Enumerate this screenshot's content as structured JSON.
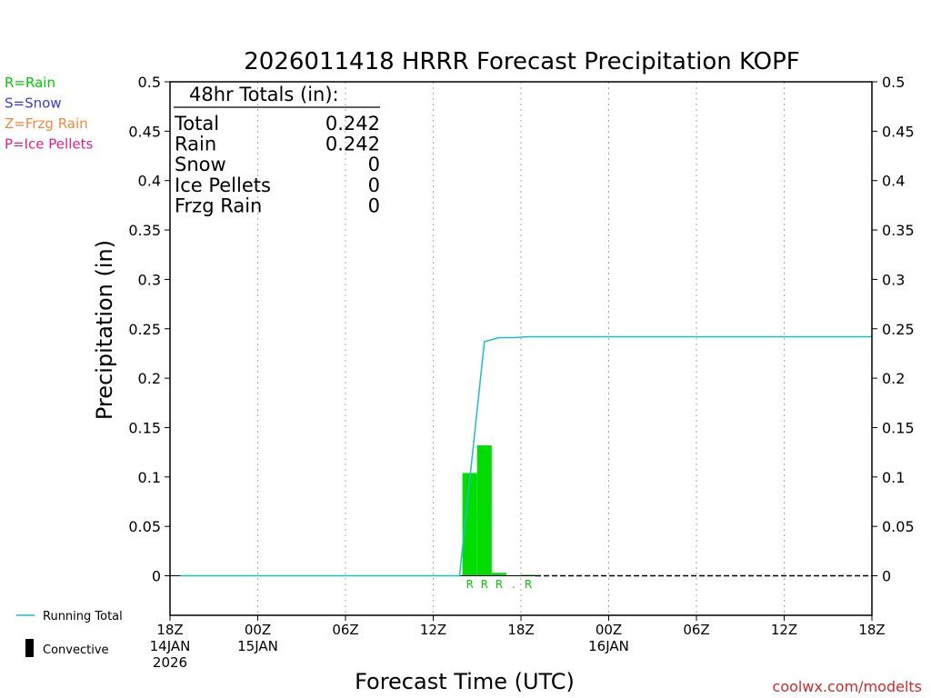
{
  "chart_data": {
    "type": "bar",
    "title": "2026011418 HRRR Forecast Precipitation KOPF",
    "xlabel": "Forecast Time (UTC)",
    "ylabel": "Precipitation (in)",
    "ylim": [
      -0.04,
      0.5
    ],
    "xlim": [
      0,
      48
    ],
    "y_ticks": [
      0,
      0.05,
      0.1,
      0.15,
      0.2,
      0.25,
      0.3,
      0.35,
      0.4,
      0.45,
      0.5
    ],
    "y_tick_labels": [
      "0",
      "0.05",
      "0.1",
      "0.15",
      "0.2",
      "0.25",
      "0.3",
      "0.35",
      "0.4",
      "0.45",
      "0.5"
    ],
    "x_ticks": [
      {
        "hour": 0,
        "lines": [
          "18Z",
          "14JAN",
          "2026"
        ]
      },
      {
        "hour": 6,
        "lines": [
          "00Z",
          "15JAN"
        ]
      },
      {
        "hour": 12,
        "lines": [
          "06Z"
        ]
      },
      {
        "hour": 18,
        "lines": [
          "12Z"
        ]
      },
      {
        "hour": 24,
        "lines": [
          "18Z"
        ]
      },
      {
        "hour": 30,
        "lines": [
          "00Z",
          "16JAN"
        ]
      },
      {
        "hour": 36,
        "lines": [
          "06Z"
        ]
      },
      {
        "hour": 42,
        "lines": [
          "12Z"
        ]
      },
      {
        "hour": 48,
        "lines": [
          "18Z"
        ]
      }
    ],
    "grid_vertical": true,
    "series": [
      {
        "name": "Running Total",
        "kind": "line",
        "color": "#1bbfc6",
        "x": [
          0.7,
          19.8,
          21.5,
          22.5,
          23.5,
          24.5,
          48
        ],
        "y": [
          0,
          0,
          0.237,
          0.241,
          0.241,
          0.242,
          0.242
        ]
      },
      {
        "name": "Rain",
        "kind": "bar",
        "color": "#00dd00",
        "bars": [
          {
            "start": 20.0,
            "end": 21.0,
            "value": 0.104
          },
          {
            "start": 21.0,
            "end": 22.0,
            "value": 0.132
          },
          {
            "start": 22.0,
            "end": 23.0,
            "value": 0.003
          },
          {
            "start": 24.0,
            "end": 25.0,
            "value": 0.001
          }
        ]
      }
    ],
    "ptype_markers": [
      {
        "hour": 20.5,
        "label": "R"
      },
      {
        "hour": 21.5,
        "label": "R"
      },
      {
        "hour": 22.5,
        "label": "R"
      },
      {
        "hour": 23.5,
        "label": "."
      },
      {
        "hour": 24.5,
        "label": "R"
      }
    ],
    "ptype_color": "#00cc00",
    "zero_line_dashed_from_hour": 25,
    "totals_box": {
      "heading": "48hr Totals (in):",
      "rows": [
        {
          "label": "Total",
          "value": "0.242"
        },
        {
          "label": "Rain",
          "value": "0.242"
        },
        {
          "label": "Snow",
          "value": "0"
        },
        {
          "label": "Ice Pellets",
          "value": "0"
        },
        {
          "label": "Frzg Rain",
          "value": "0"
        }
      ]
    },
    "ptype_legend": [
      {
        "text": "R=Rain",
        "color": "#00cc00"
      },
      {
        "text": "S=Snow",
        "color": "#3a3adf"
      },
      {
        "text": "Z=Frzg Rain",
        "color": "#ef8a3a"
      },
      {
        "text": "P=Ice Pellets",
        "color": "#e0208a"
      }
    ],
    "bottom_legend": {
      "running_total": "Running Total",
      "convective": "Convective"
    },
    "credit": "coolwx.com/modelts"
  }
}
